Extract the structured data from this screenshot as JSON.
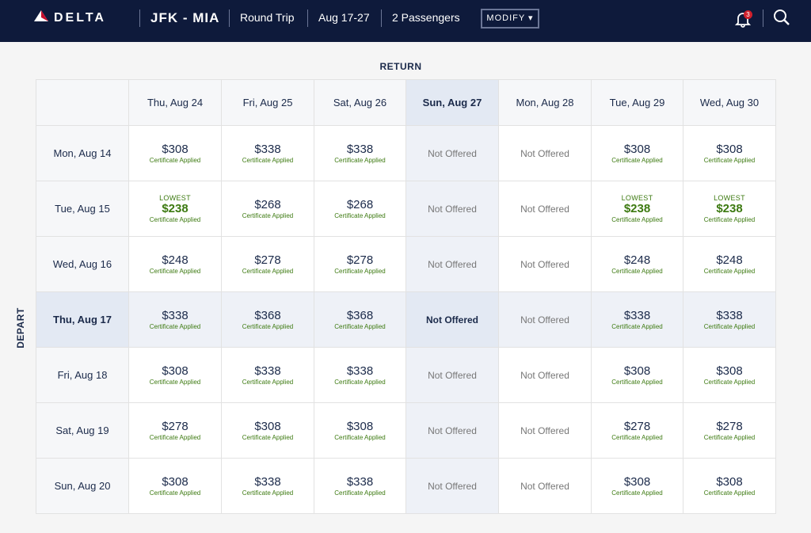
{
  "header": {
    "brand": "DELTA",
    "route": "JFK - MIA",
    "trip": "Round Trip",
    "dates": "Aug 17-27",
    "passengers": "2 Passengers",
    "modify": "MODIFY",
    "notifications": "3"
  },
  "grid": {
    "return_label": "RETURN",
    "depart_label": "DEPART",
    "columns": [
      "Thu, Aug 24",
      "Fri, Aug 25",
      "Sat, Aug 26",
      "Sun, Aug 27",
      "Mon, Aug 28",
      "Tue, Aug 29",
      "Wed, Aug 30"
    ],
    "rows": [
      {
        "date": "Mon, Aug 14",
        "cells": [
          {
            "price": "$308",
            "note": "Certificate Applied"
          },
          {
            "price": "$338",
            "note": "Certificate Applied"
          },
          {
            "price": "$338",
            "note": "Certificate Applied"
          },
          {
            "status": "Not Offered"
          },
          {
            "status": "Not Offered"
          },
          {
            "price": "$308",
            "note": "Certificate Applied"
          },
          {
            "price": "$308",
            "note": "Certificate Applied"
          }
        ]
      },
      {
        "date": "Tue, Aug 15",
        "cells": [
          {
            "label": "LOWEST",
            "price": "$238",
            "note": "Certificate Applied"
          },
          {
            "price": "$268",
            "note": "Certificate Applied"
          },
          {
            "price": "$268",
            "note": "Certificate Applied"
          },
          {
            "status": "Not Offered"
          },
          {
            "status": "Not Offered"
          },
          {
            "label": "LOWEST",
            "price": "$238",
            "note": "Certificate Applied"
          },
          {
            "label": "LOWEST",
            "price": "$238",
            "note": "Certificate Applied"
          }
        ]
      },
      {
        "date": "Wed, Aug 16",
        "cells": [
          {
            "price": "$248",
            "note": "Certificate Applied"
          },
          {
            "price": "$278",
            "note": "Certificate Applied"
          },
          {
            "price": "$278",
            "note": "Certificate Applied"
          },
          {
            "status": "Not Offered"
          },
          {
            "status": "Not Offered"
          },
          {
            "price": "$248",
            "note": "Certificate Applied"
          },
          {
            "price": "$248",
            "note": "Certificate Applied"
          }
        ]
      },
      {
        "date": "Thu, Aug 17",
        "cells": [
          {
            "price": "$338",
            "note": "Certificate Applied"
          },
          {
            "price": "$368",
            "note": "Certificate Applied"
          },
          {
            "price": "$368",
            "note": "Certificate Applied"
          },
          {
            "status": "Not Offered"
          },
          {
            "status": "Not Offered"
          },
          {
            "price": "$338",
            "note": "Certificate Applied"
          },
          {
            "price": "$338",
            "note": "Certificate Applied"
          }
        ]
      },
      {
        "date": "Fri, Aug 18",
        "cells": [
          {
            "price": "$308",
            "note": "Certificate Applied"
          },
          {
            "price": "$338",
            "note": "Certificate Applied"
          },
          {
            "price": "$338",
            "note": "Certificate Applied"
          },
          {
            "status": "Not Offered"
          },
          {
            "status": "Not Offered"
          },
          {
            "price": "$308",
            "note": "Certificate Applied"
          },
          {
            "price": "$308",
            "note": "Certificate Applied"
          }
        ]
      },
      {
        "date": "Sat, Aug 19",
        "cells": [
          {
            "price": "$278",
            "note": "Certificate Applied"
          },
          {
            "price": "$308",
            "note": "Certificate Applied"
          },
          {
            "price": "$308",
            "note": "Certificate Applied"
          },
          {
            "status": "Not Offered"
          },
          {
            "status": "Not Offered"
          },
          {
            "price": "$278",
            "note": "Certificate Applied"
          },
          {
            "price": "$278",
            "note": "Certificate Applied"
          }
        ]
      },
      {
        "date": "Sun, Aug 20",
        "cells": [
          {
            "price": "$308",
            "note": "Certificate Applied"
          },
          {
            "price": "$338",
            "note": "Certificate Applied"
          },
          {
            "price": "$338",
            "note": "Certificate Applied"
          },
          {
            "status": "Not Offered"
          },
          {
            "status": "Not Offered"
          },
          {
            "price": "$308",
            "note": "Certificate Applied"
          },
          {
            "price": "$308",
            "note": "Certificate Applied"
          }
        ]
      }
    ]
  }
}
